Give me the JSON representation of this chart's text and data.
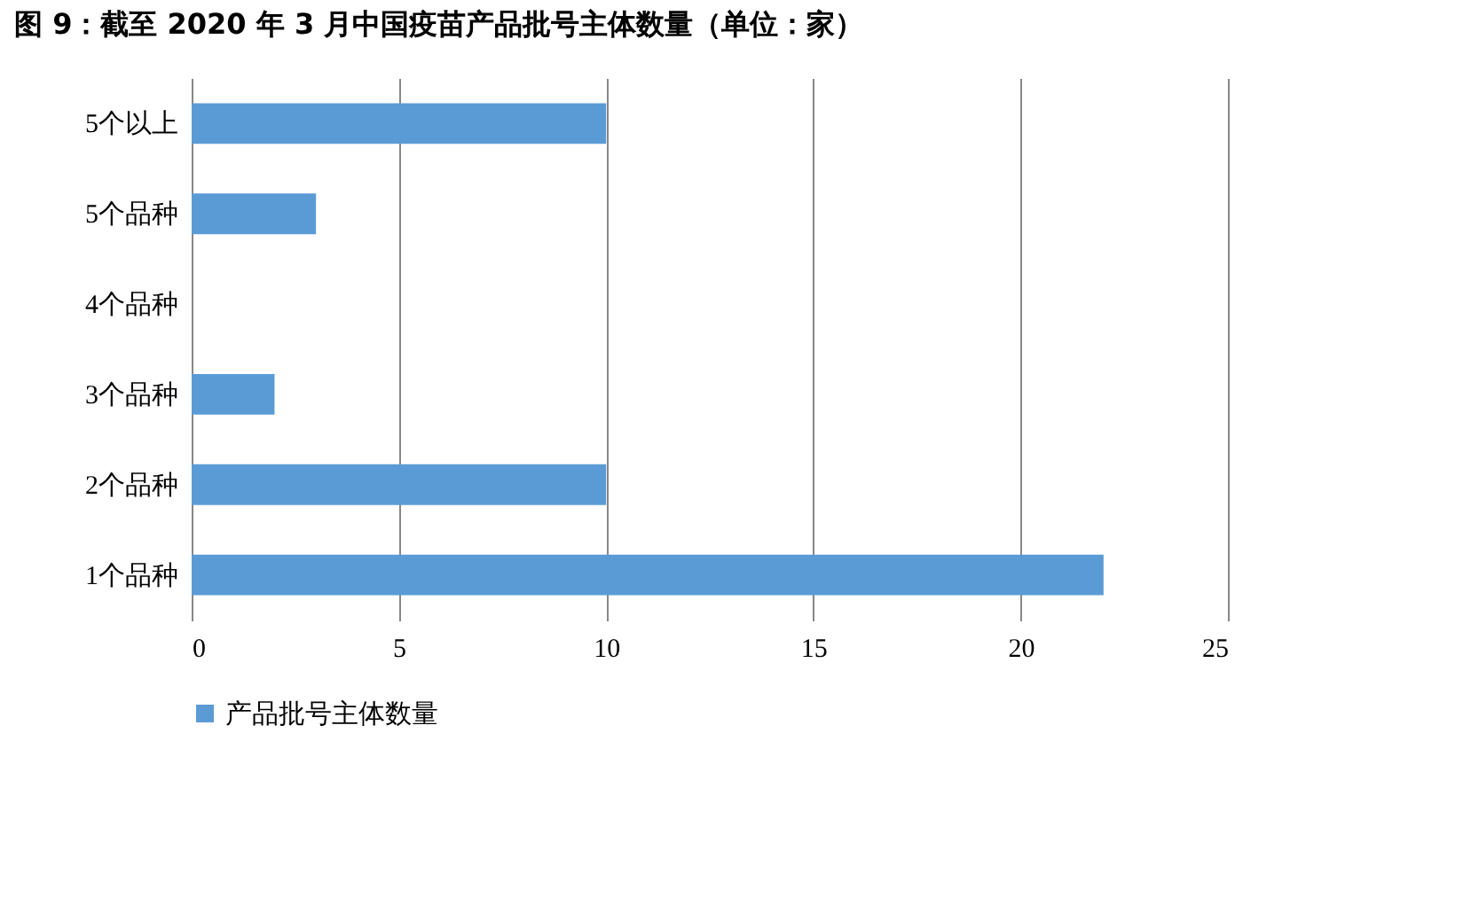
{
  "chart_data": {
    "type": "bar",
    "orientation": "horizontal",
    "title": "图 9：截至 2020 年 3 月中国疫苗产品批号主体数量（单位：家）",
    "categories": [
      "5个以上",
      "5个品种",
      "4个品种",
      "3个品种",
      "2个品种",
      "1个品种"
    ],
    "series": [
      {
        "name": "产品批号主体数量",
        "color": "#5b9bd5",
        "values": [
          10,
          3,
          0,
          2,
          10,
          22
        ]
      }
    ],
    "xlim": [
      0,
      25
    ],
    "xticks": [
      0,
      5,
      10,
      15,
      20,
      25
    ],
    "grid": "x",
    "legend": "bottom"
  }
}
